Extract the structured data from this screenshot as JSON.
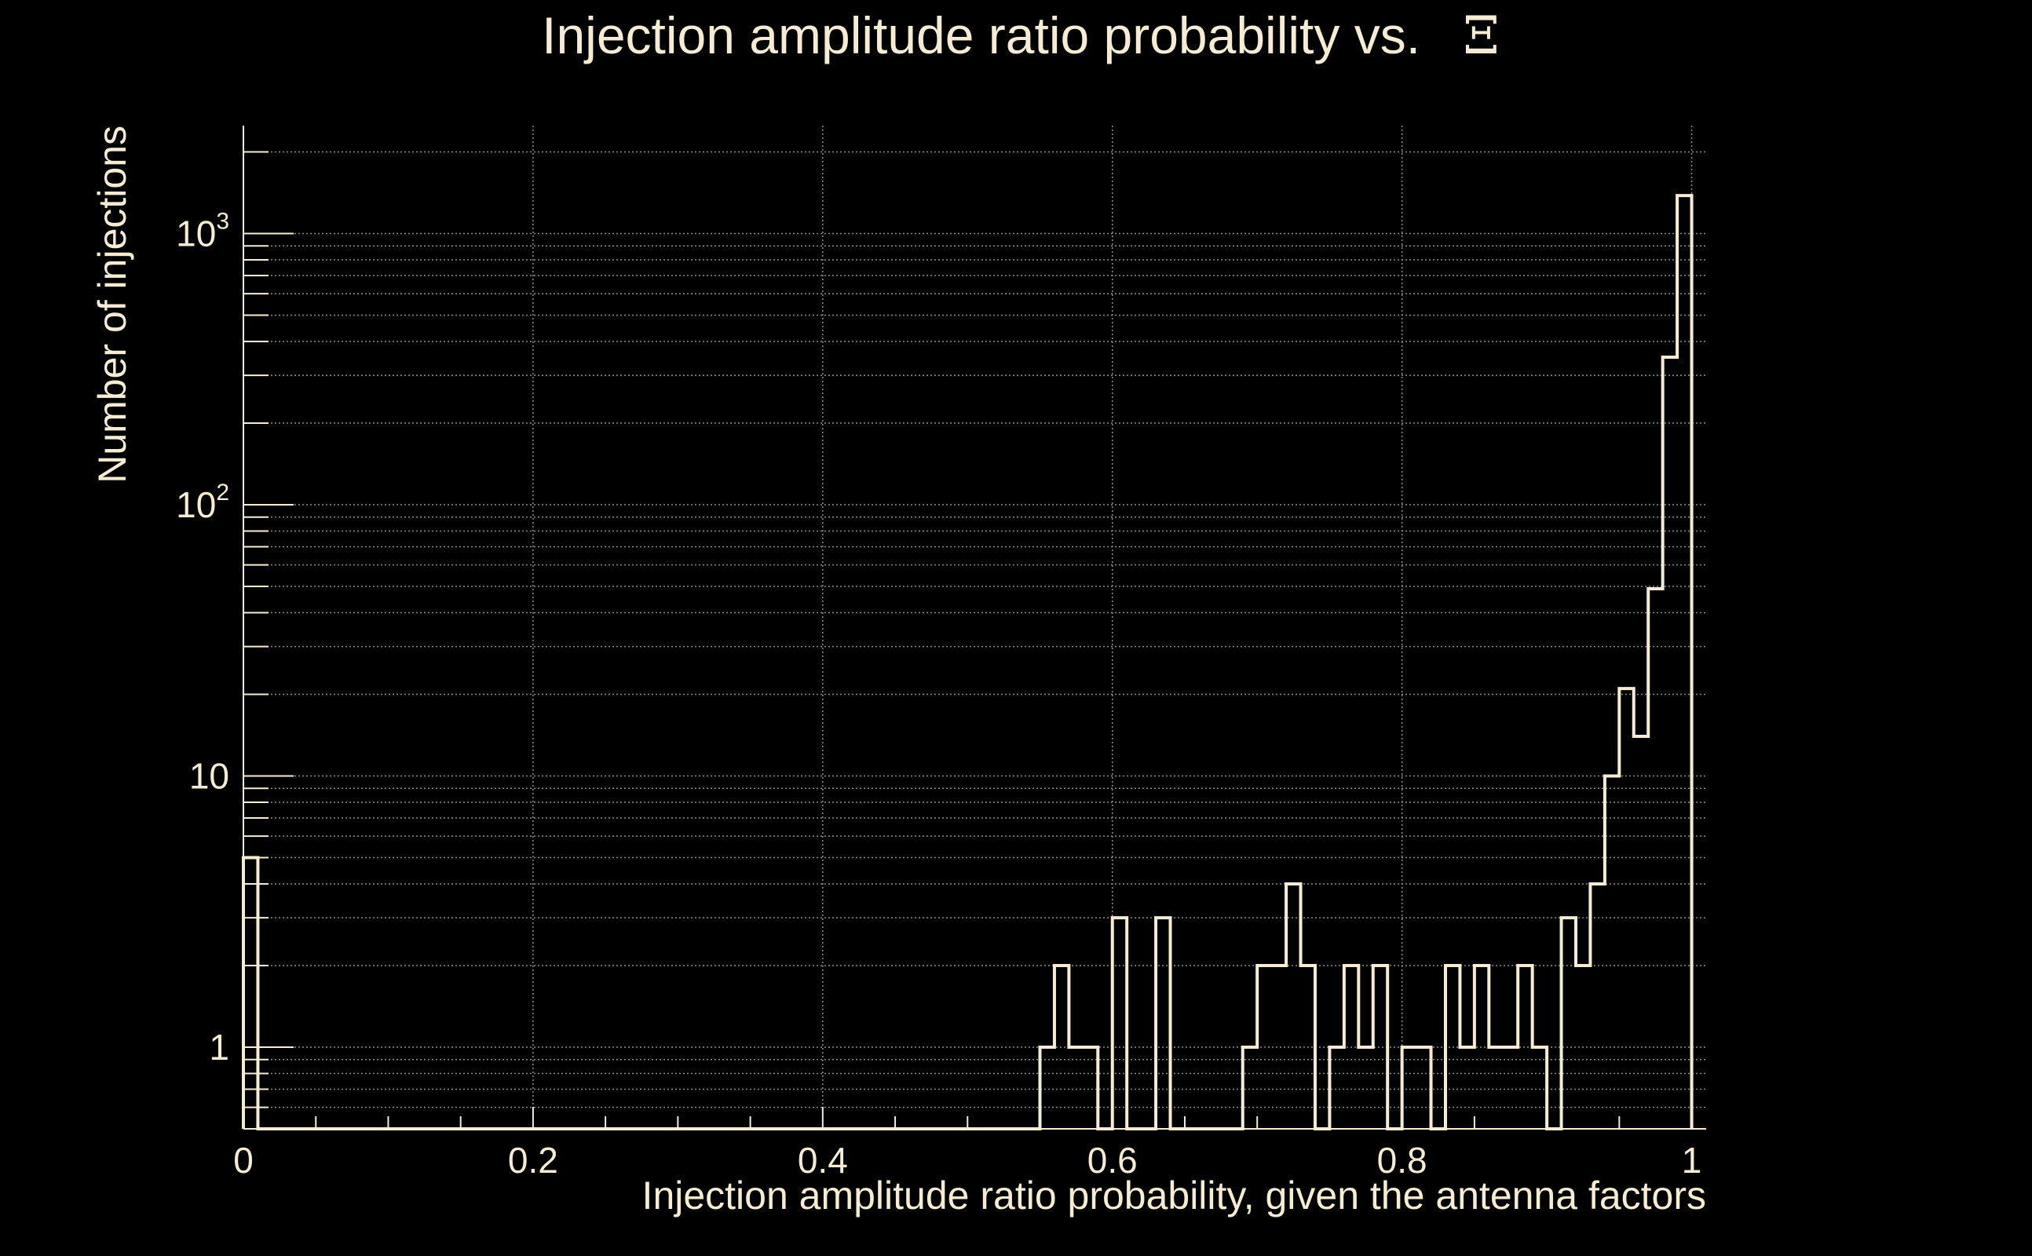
{
  "chart_data": {
    "type": "histogram",
    "title": "Injection amplitude ratio probability vs.",
    "title_symbol": "Ξ",
    "xlabel": "Injection amplitude ratio probability, given the antenna factors",
    "ylabel": "Number of injections",
    "xlim": [
      0,
      1.01
    ],
    "ylim": [
      0.5,
      2500
    ],
    "yscale": "log",
    "grid": true,
    "x_ticks": [
      {
        "value": 0,
        "label": "0"
      },
      {
        "value": 0.2,
        "label": "0.2"
      },
      {
        "value": 0.4,
        "label": "0.4"
      },
      {
        "value": 0.6,
        "label": "0.6"
      },
      {
        "value": 0.8,
        "label": "0.8"
      },
      {
        "value": 1,
        "label": "1"
      }
    ],
    "y_ticks": [
      {
        "value": 1,
        "label": "1",
        "exp": ""
      },
      {
        "value": 10,
        "label": "10",
        "exp": ""
      },
      {
        "value": 100,
        "label": "10",
        "exp": "2"
      },
      {
        "value": 1000,
        "label": "10",
        "exp": "3"
      }
    ],
    "bin_width": 0.01,
    "bins": [
      {
        "x": 0.0,
        "count": 5
      },
      {
        "x": 0.55,
        "count": 1
      },
      {
        "x": 0.56,
        "count": 2
      },
      {
        "x": 0.57,
        "count": 1
      },
      {
        "x": 0.58,
        "count": 1
      },
      {
        "x": 0.6,
        "count": 3
      },
      {
        "x": 0.63,
        "count": 3
      },
      {
        "x": 0.69,
        "count": 1
      },
      {
        "x": 0.7,
        "count": 2
      },
      {
        "x": 0.71,
        "count": 2
      },
      {
        "x": 0.72,
        "count": 4
      },
      {
        "x": 0.73,
        "count": 2
      },
      {
        "x": 0.75,
        "count": 1
      },
      {
        "x": 0.76,
        "count": 2
      },
      {
        "x": 0.77,
        "count": 1
      },
      {
        "x": 0.78,
        "count": 2
      },
      {
        "x": 0.8,
        "count": 1
      },
      {
        "x": 0.81,
        "count": 1
      },
      {
        "x": 0.83,
        "count": 2
      },
      {
        "x": 0.84,
        "count": 1
      },
      {
        "x": 0.85,
        "count": 2
      },
      {
        "x": 0.86,
        "count": 1
      },
      {
        "x": 0.87,
        "count": 1
      },
      {
        "x": 0.88,
        "count": 2
      },
      {
        "x": 0.89,
        "count": 1
      },
      {
        "x": 0.91,
        "count": 3
      },
      {
        "x": 0.92,
        "count": 2
      },
      {
        "x": 0.93,
        "count": 4
      },
      {
        "x": 0.94,
        "count": 10
      },
      {
        "x": 0.95,
        "count": 21
      },
      {
        "x": 0.96,
        "count": 14
      },
      {
        "x": 0.97,
        "count": 49
      },
      {
        "x": 0.98,
        "count": 350
      },
      {
        "x": 0.99,
        "count": 1380
      }
    ],
    "line_color": "#f5ecd2",
    "grid_color": "#8c8c8c",
    "text_color": "#f5ecd2",
    "background": "#000000"
  }
}
